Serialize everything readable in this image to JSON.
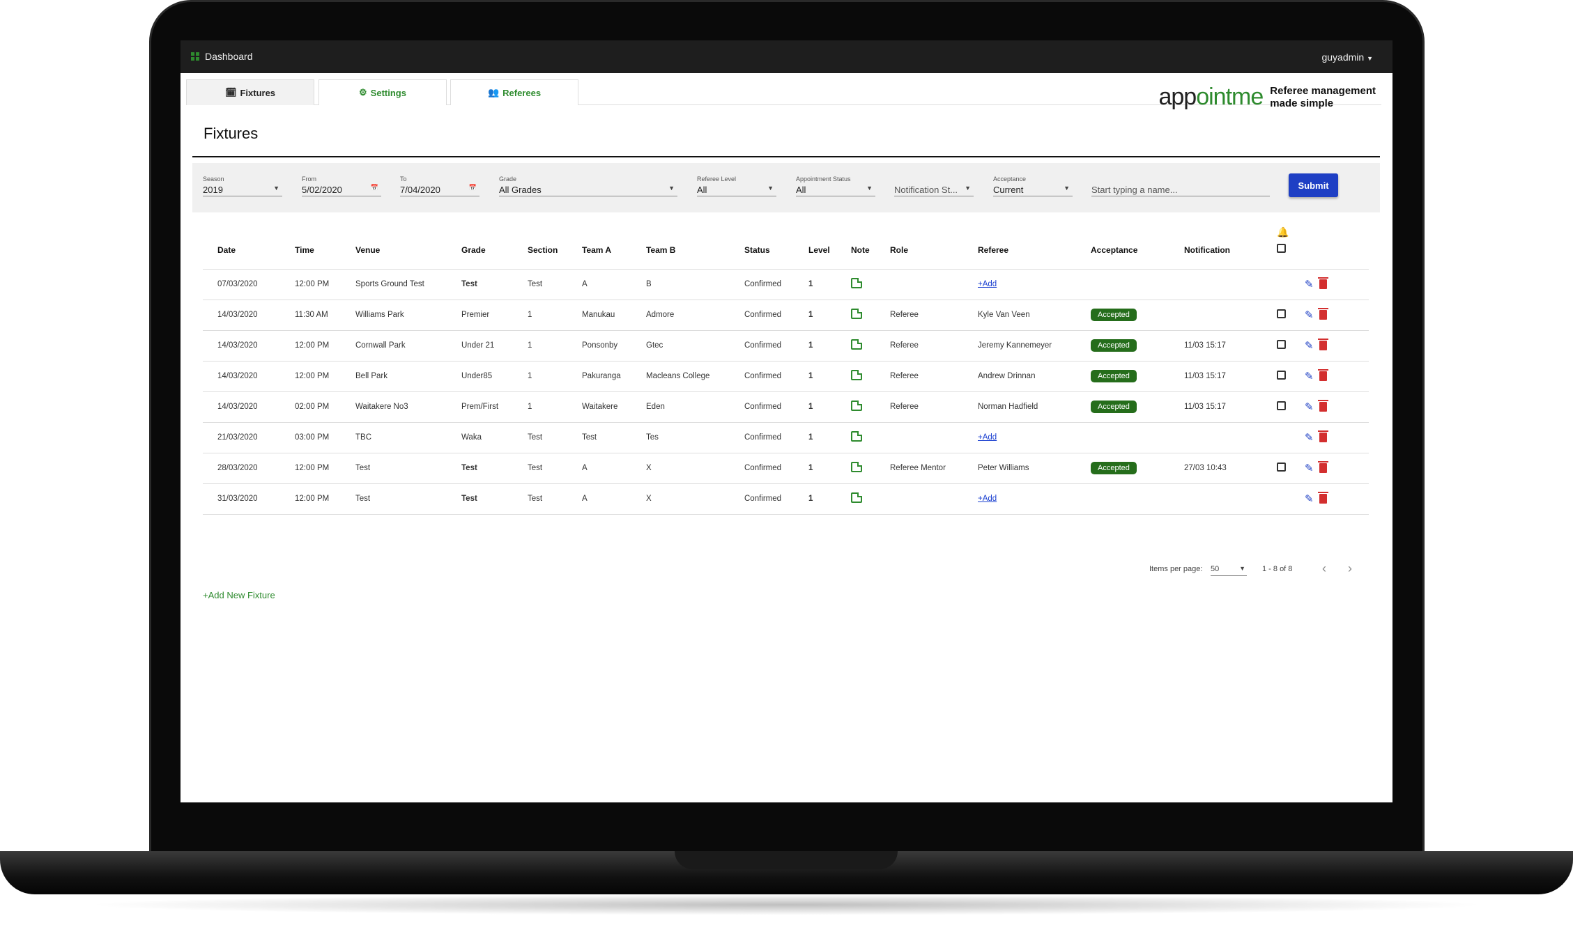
{
  "topbar": {
    "dashboard": "Dashboard",
    "user": "guyadmin"
  },
  "tabs": [
    {
      "label": "Fixtures",
      "icon": "calendar-icon"
    },
    {
      "label": "Settings",
      "icon": "gear-icon"
    },
    {
      "label": "Referees",
      "icon": "people-icon"
    }
  ],
  "logo": {
    "word_a": "app",
    "word_b": "ointme",
    "tagline_1": "Referee management",
    "tagline_2": "made simple"
  },
  "page_title": "Fixtures",
  "filters": {
    "season": {
      "label": "Season",
      "value": "2019"
    },
    "from": {
      "label": "From",
      "value": "5/02/2020"
    },
    "to": {
      "label": "To",
      "value": "7/04/2020"
    },
    "grade": {
      "label": "Grade",
      "value": "All Grades"
    },
    "referee_level": {
      "label": "Referee Level",
      "value": "All"
    },
    "appointment_status": {
      "label": "Appointment Status",
      "value": "All"
    },
    "notification_status": {
      "placeholder": "Notification St..."
    },
    "acceptance": {
      "label": "Acceptance",
      "value": "Current"
    },
    "name_search": {
      "placeholder": "Start typing a name..."
    },
    "submit": "Submit"
  },
  "table": {
    "headers": [
      "Date",
      "Time",
      "Venue",
      "Grade",
      "Section",
      "Team A",
      "Team B",
      "Status",
      "Level",
      "Note",
      "Role",
      "Referee",
      "Acceptance",
      "Notification"
    ],
    "rows": [
      {
        "date": "07/03/2020",
        "time": "12:00 PM",
        "venue": "Sports Ground Test",
        "grade": "Test",
        "section": "Test",
        "team_a": "A",
        "team_b": "B",
        "status": "Confirmed",
        "level": "1",
        "role": "",
        "referee": "+Add",
        "acceptance": "",
        "notification": ""
      },
      {
        "date": "14/03/2020",
        "time": "11:30 AM",
        "venue": "Williams Park",
        "grade": "Premier",
        "section": "1",
        "team_a": "Manukau",
        "team_b": "Admore",
        "status": "Confirmed",
        "level": "1",
        "role": "Referee",
        "referee": "Kyle Van Veen",
        "acceptance": "Accepted",
        "notification": ""
      },
      {
        "date": "14/03/2020",
        "time": "12:00 PM",
        "venue": "Cornwall Park",
        "grade": "Under 21",
        "section": "1",
        "team_a": "Ponsonby",
        "team_b": "Gtec",
        "status": "Confirmed",
        "level": "1",
        "role": "Referee",
        "referee": "Jeremy Kannemeyer",
        "acceptance": "Accepted",
        "notification": "11/03 15:17"
      },
      {
        "date": "14/03/2020",
        "time": "12:00 PM",
        "venue": "Bell Park",
        "grade": "Under85",
        "section": "1",
        "team_a": "Pakuranga",
        "team_b": "Macleans College",
        "status": "Confirmed",
        "level": "1",
        "role": "Referee",
        "referee": "Andrew Drinnan",
        "acceptance": "Accepted",
        "notification": "11/03 15:17"
      },
      {
        "date": "14/03/2020",
        "time": "02:00 PM",
        "venue": "Waitakere No3",
        "grade": "Prem/First",
        "section": "1",
        "team_a": "Waitakere",
        "team_b": "Eden",
        "status": "Confirmed",
        "level": "1",
        "role": "Referee",
        "referee": "Norman Hadfield",
        "acceptance": "Accepted",
        "notification": "11/03 15:17"
      },
      {
        "date": "21/03/2020",
        "time": "03:00 PM",
        "venue": "TBC",
        "grade": "Waka",
        "section": "Test",
        "team_a": "Test",
        "team_b": "Tes",
        "status": "Confirmed",
        "level": "1",
        "role": "",
        "referee": "+Add",
        "acceptance": "",
        "notification": ""
      },
      {
        "date": "28/03/2020",
        "time": "12:00 PM",
        "venue": "Test",
        "grade": "Test",
        "section": "Test",
        "team_a": "A",
        "team_b": "X",
        "status": "Confirmed",
        "level": "1",
        "role": "Referee Mentor",
        "referee": "Peter Williams",
        "acceptance": "Accepted",
        "notification": "27/03 10:43"
      },
      {
        "date": "31/03/2020",
        "time": "12:00 PM",
        "venue": "Test",
        "grade": "Test",
        "section": "Test",
        "team_a": "A",
        "team_b": "X",
        "status": "Confirmed",
        "level": "1",
        "role": "",
        "referee": "+Add",
        "acceptance": "",
        "notification": ""
      }
    ]
  },
  "pagination": {
    "items_label": "Items per page:",
    "items_value": "50",
    "range": "1 - 8 of 8"
  },
  "add_new_fixture": "+Add New Fixture",
  "colors": {
    "brand_green": "#2e8b2e",
    "badge_green": "#256d1b",
    "submit_blue": "#1e3fc4",
    "delete_red": "#d32f2f"
  }
}
